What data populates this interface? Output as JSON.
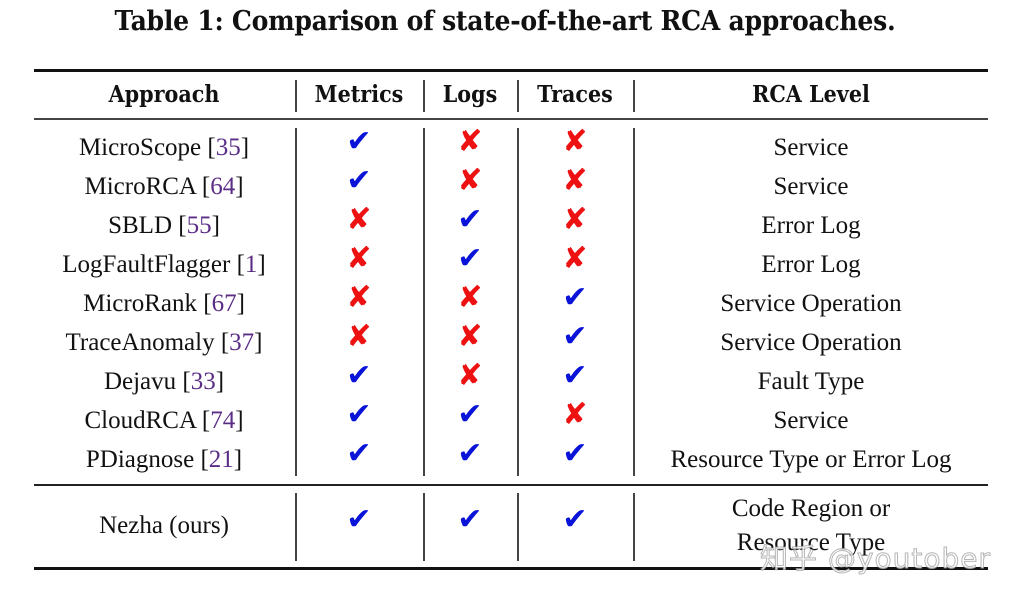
{
  "caption": "Table 1: Comparison of state-of-the-art RCA approaches.",
  "headers": {
    "approach": "Approach",
    "metrics": "Metrics",
    "logs": "Logs",
    "traces": "Traces",
    "rca_level": "RCA Level"
  },
  "symbols": {
    "yes": "✔",
    "no": "✘"
  },
  "colors": {
    "yes": "#0a14d8",
    "no": "#ee1111",
    "citation": "#5b2d86"
  },
  "rows": [
    {
      "name": "MicroScope",
      "cite": "35",
      "metrics": "yes",
      "logs": "no",
      "traces": "no",
      "level": "Service"
    },
    {
      "name": "MicroRCA",
      "cite": "64",
      "metrics": "yes",
      "logs": "no",
      "traces": "no",
      "level": "Service"
    },
    {
      "name": "SBLD",
      "cite": "55",
      "metrics": "no",
      "logs": "yes",
      "traces": "no",
      "level": "Error Log"
    },
    {
      "name": "LogFaultFlagger",
      "cite": "1",
      "metrics": "no",
      "logs": "yes",
      "traces": "no",
      "level": "Error Log"
    },
    {
      "name": "MicroRank",
      "cite": "67",
      "metrics": "no",
      "logs": "no",
      "traces": "yes",
      "level": "Service Operation"
    },
    {
      "name": "TraceAnomaly",
      "cite": "37",
      "metrics": "no",
      "logs": "no",
      "traces": "yes",
      "level": "Service Operation"
    },
    {
      "name": "Dejavu",
      "cite": "33",
      "metrics": "yes",
      "logs": "no",
      "traces": "yes",
      "level": "Fault Type"
    },
    {
      "name": "CloudRCA",
      "cite": "74",
      "metrics": "yes",
      "logs": "yes",
      "traces": "no",
      "level": "Service"
    },
    {
      "name": "PDiagnose",
      "cite": "21",
      "metrics": "yes",
      "logs": "yes",
      "traces": "yes",
      "level": "Resource Type or Error Log"
    }
  ],
  "ours": {
    "name": "Nezha (ours)",
    "metrics": "yes",
    "logs": "yes",
    "traces": "yes",
    "level_line1": "Code Region or",
    "level_line2": "Resource Type"
  },
  "watermark": "知乎 @youtober"
}
